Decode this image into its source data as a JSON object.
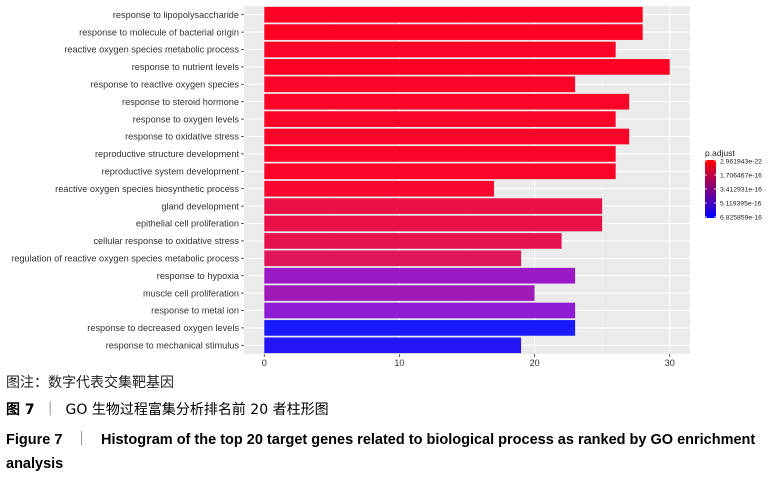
{
  "chart_data": {
    "type": "bar",
    "orientation": "horizontal",
    "categories": [
      "response to lipopolysaccharide",
      "response to molecule of bacterial origin",
      "reactive oxygen species metabolic process",
      "response to nutrient levels",
      "response to reactive oxygen species",
      "response to steroid hormone",
      "response to oxygen levels",
      "response to oxidative stress",
      "reproductive structure development",
      "reproductive system development",
      "reactive oxygen species biosynthetic process",
      "gland development",
      "epithelial cell proliferation",
      "cellular response to oxidative stress",
      "regulation of reactive oxygen species metabolic process",
      "response to hypoxia",
      "muscle cell proliferation",
      "response to metal ion",
      "response to decreased oxygen levels",
      "response to mechanical stimulus"
    ],
    "values": [
      28,
      28,
      26,
      30,
      23,
      27,
      26,
      27,
      26,
      26,
      17,
      25,
      25,
      22,
      19,
      23,
      20,
      23,
      23,
      19
    ],
    "bar_colors": [
      "#fe0224",
      "#fe0224",
      "#fc0428",
      "#fe0224",
      "#fc0428",
      "#fc0428",
      "#fc0428",
      "#fc0428",
      "#fc0428",
      "#fc0428",
      "#f8082e",
      "#ea1048",
      "#ea1048",
      "#e6124e",
      "#e01658",
      "#9a1ac6",
      "#a01aba",
      "#8e1cd4",
      "#1a1aff",
      "#2416f4"
    ],
    "xlim": [
      -1.5,
      31.5
    ],
    "xticks": [
      "0",
      "10",
      "20",
      "30"
    ],
    "grid": true,
    "background": "#ebebeb",
    "legend": {
      "title": "p.adjust",
      "labels": [
        "2.961943e-22",
        "1.706467e-16",
        "3.412931e-16",
        "5.119395e-16",
        "6.825859e-16"
      ],
      "colors": [
        "#ff0000",
        "#0000ff"
      ],
      "position": "right"
    }
  },
  "captions": {
    "note": "图注：数字代表交集靶基因",
    "cn_prefix": "图 7",
    "cn_sep": "｜",
    "cn_text": "GO 生物过程富集分析排名前 20 者柱形图",
    "en_prefix": "Figure 7",
    "en_sep": "｜",
    "en_text": "Histogram of the top 20 target genes related to biological process as ranked by GO enrichment analysis"
  }
}
